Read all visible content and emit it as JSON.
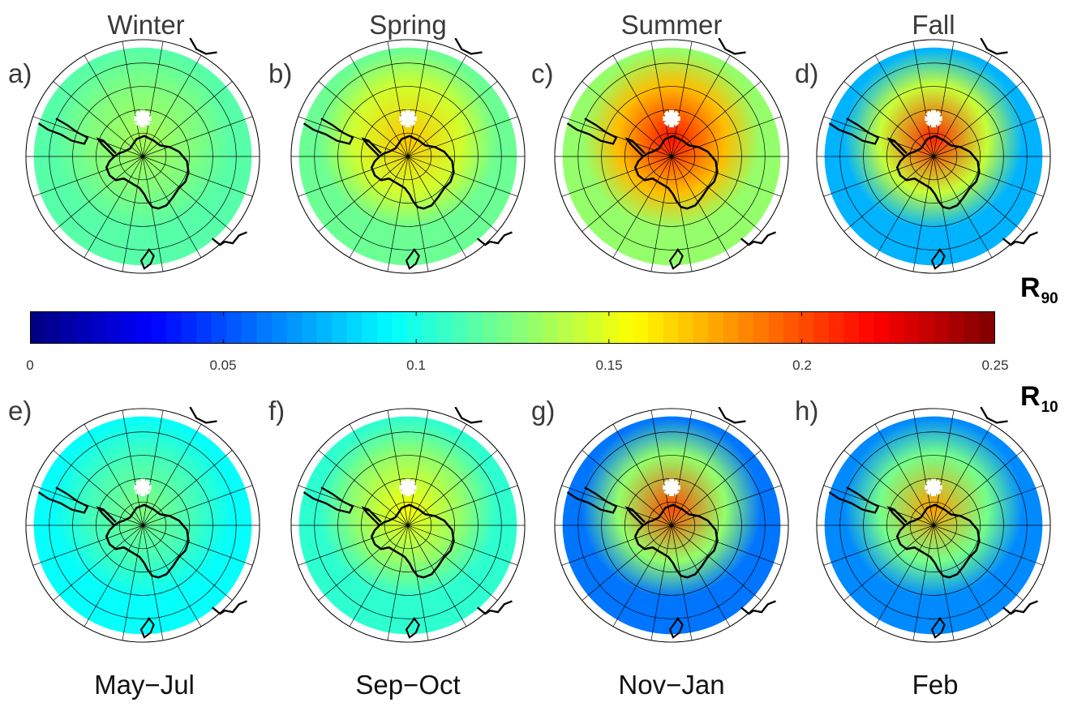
{
  "seasons": [
    "Winter",
    "Spring",
    "Summer",
    "Fall"
  ],
  "months": [
    "May−Jul",
    "Sep−Oct",
    "Nov−Jan",
    "Feb"
  ],
  "panels": [
    {
      "label": "a)",
      "row": "R90",
      "season": "Winter",
      "base_level": 0.115,
      "hotspot_level": 0.135
    },
    {
      "label": "b)",
      "row": "R90",
      "season": "Spring",
      "base_level": 0.12,
      "hotspot_level": 0.17
    },
    {
      "label": "c)",
      "row": "R90",
      "season": "Summer",
      "base_level": 0.13,
      "hotspot_level": 0.215
    },
    {
      "label": "d)",
      "row": "R90",
      "season": "Fall",
      "base_level": 0.075,
      "hotspot_level": 0.21
    },
    {
      "label": "e)",
      "row": "R10",
      "season": "Winter",
      "base_level": 0.095,
      "hotspot_level": 0.125
    },
    {
      "label": "f)",
      "row": "R10",
      "season": "Spring",
      "base_level": 0.105,
      "hotspot_level": 0.155
    },
    {
      "label": "g)",
      "row": "R10",
      "season": "Summer",
      "base_level": 0.06,
      "hotspot_level": 0.2
    },
    {
      "label": "h)",
      "row": "R10",
      "season": "Fall",
      "base_level": 0.065,
      "hotspot_level": 0.18
    }
  ],
  "row_labels": {
    "top": {
      "main": "R",
      "sub": "90"
    },
    "bottom": {
      "main": "R",
      "sub": "10"
    }
  },
  "colorbar": {
    "min": 0,
    "max": 0.25,
    "colormap": "jet",
    "ticks": [
      "0",
      "0.05",
      "0.1",
      "0.15",
      "0.2",
      "0.25"
    ]
  },
  "colors": {
    "coastline": "#000000",
    "grid": "#000000",
    "land_mask": "#ffffff"
  }
}
